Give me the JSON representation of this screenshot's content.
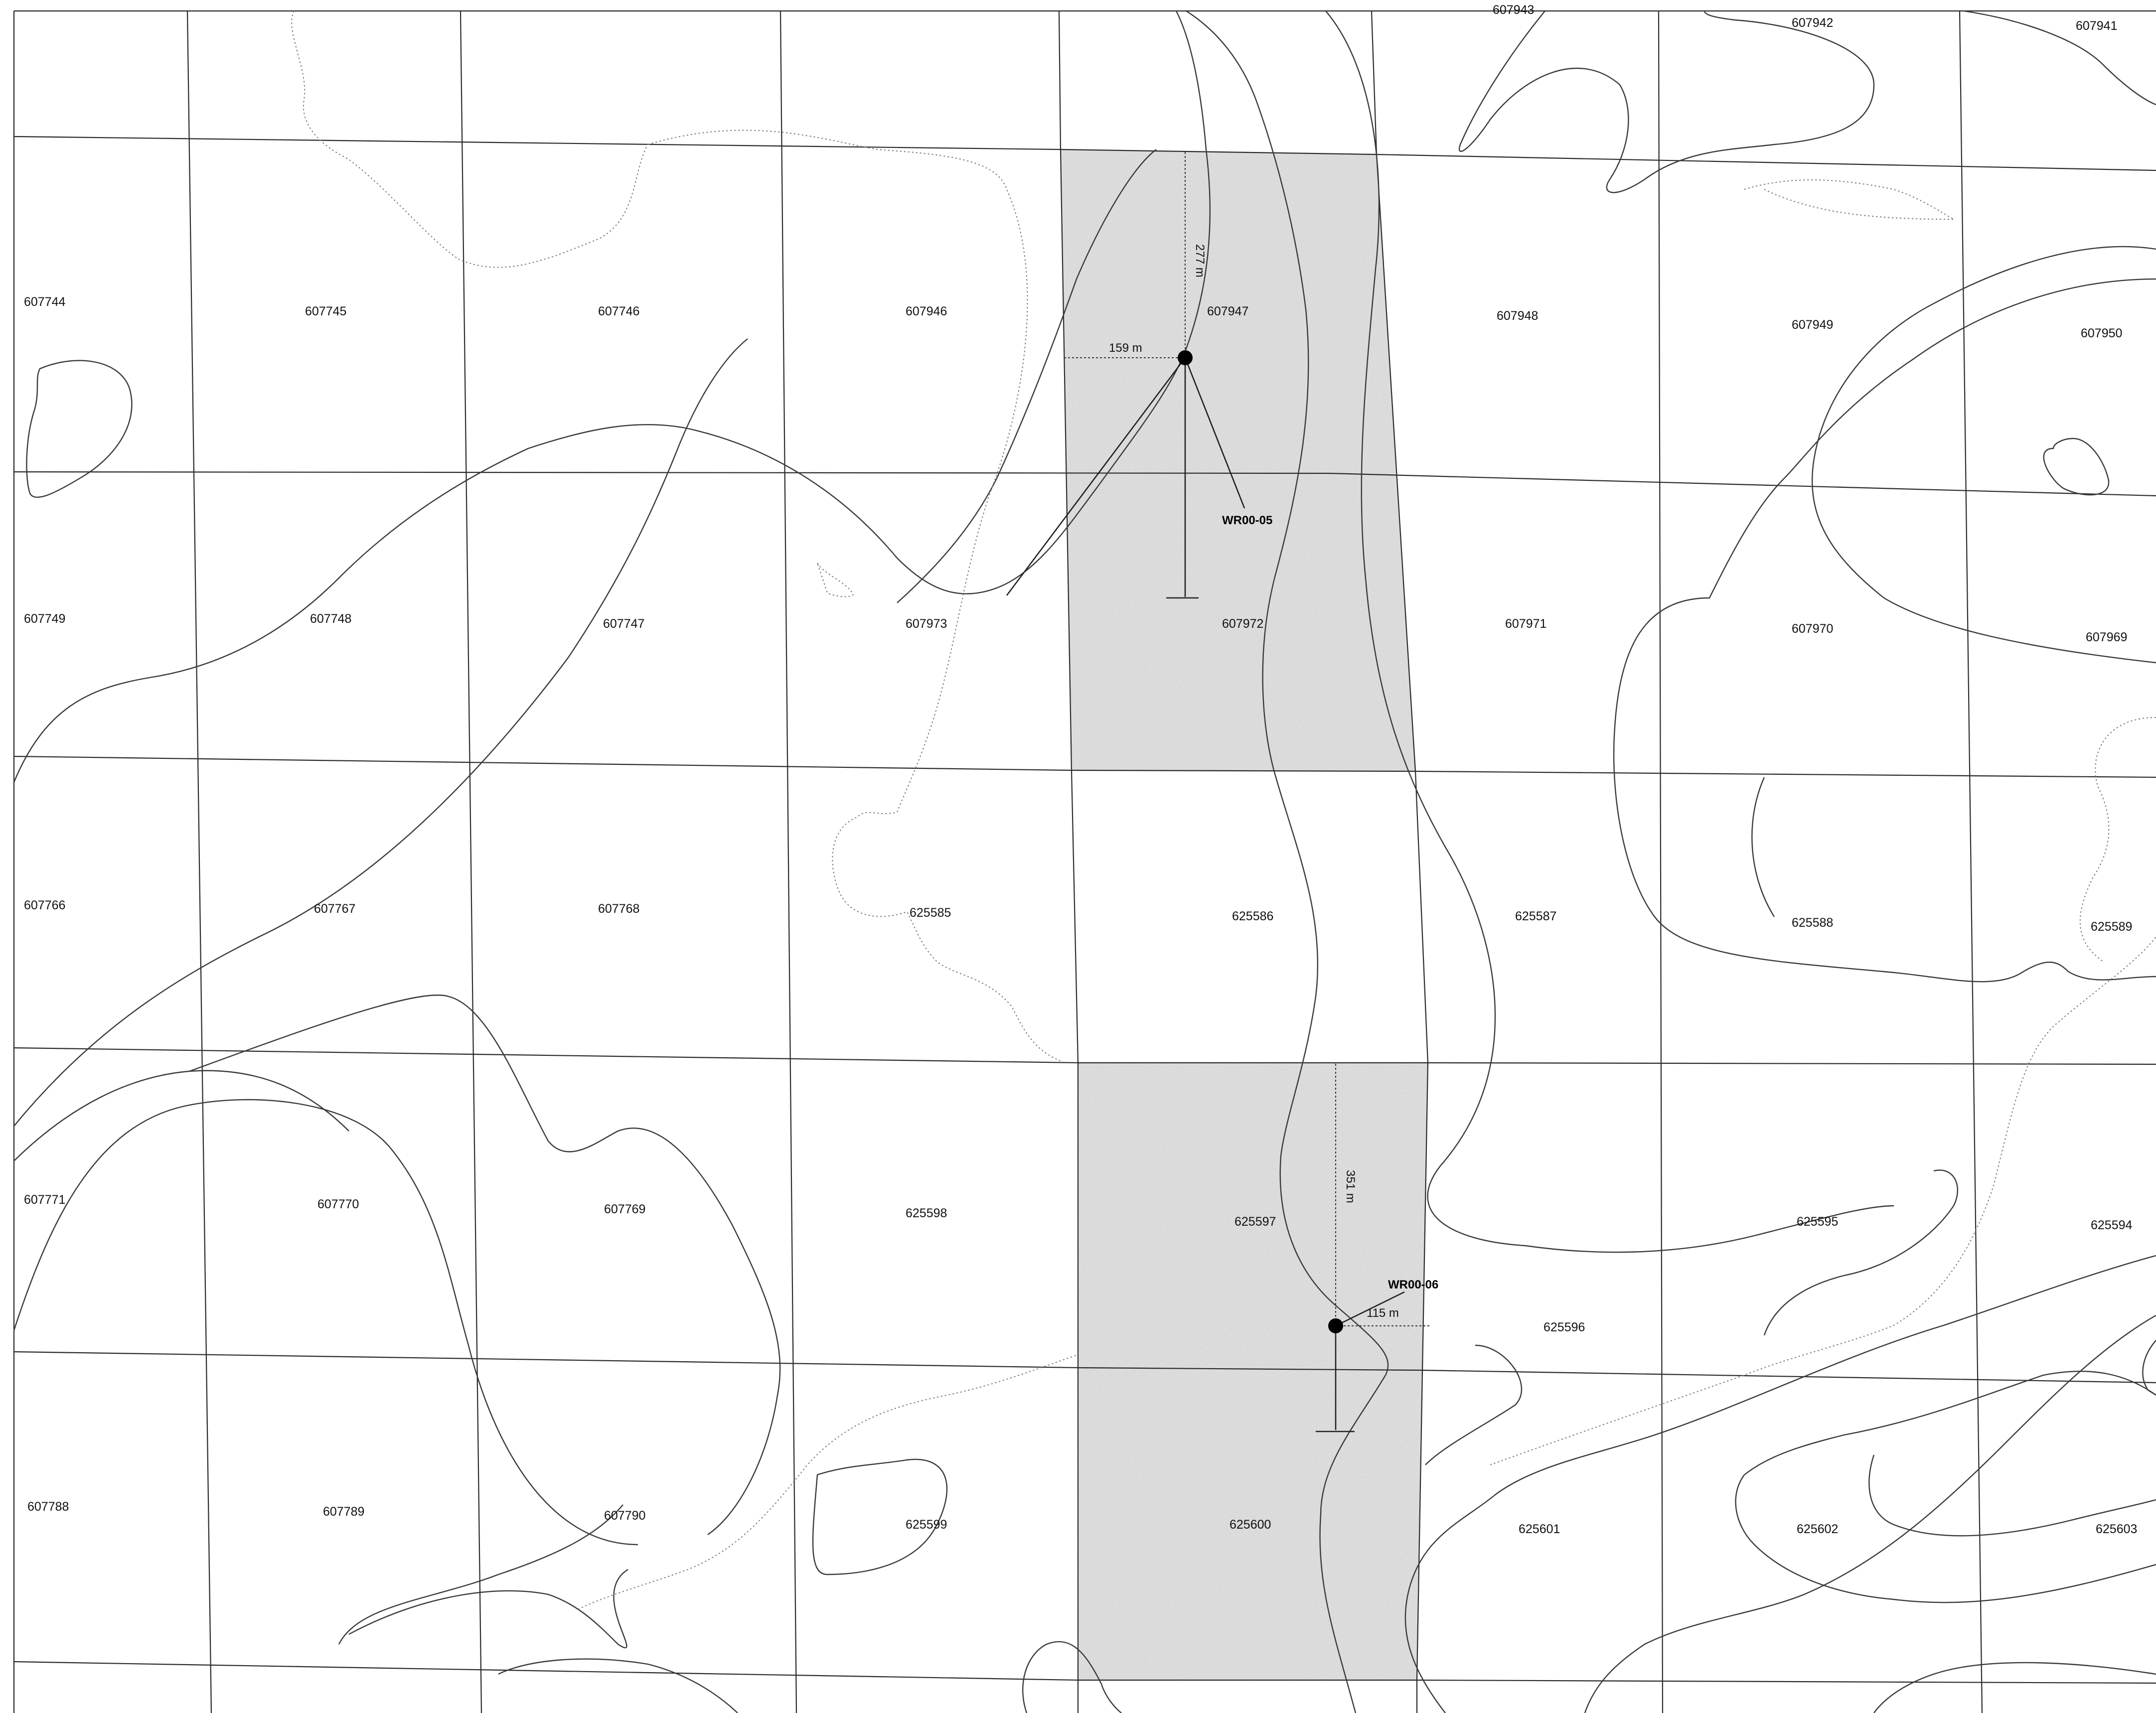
{
  "map": {
    "claims": [
      {
        "id": "607943",
        "row": 0,
        "col": 4
      },
      {
        "id": "607942",
        "row": 0,
        "col": 5
      },
      {
        "id": "607941",
        "row": 0,
        "col": 6
      },
      {
        "id": "607744",
        "row": 1,
        "col": 0
      },
      {
        "id": "607745",
        "row": 1,
        "col": 1
      },
      {
        "id": "607746",
        "row": 1,
        "col": 2
      },
      {
        "id": "607946",
        "row": 1,
        "col": 3
      },
      {
        "id": "607947",
        "row": 1,
        "col": 4
      },
      {
        "id": "607948",
        "row": 1,
        "col": 5
      },
      {
        "id": "607949",
        "row": 1,
        "col": 6
      },
      {
        "id": "607950",
        "row": 1,
        "col": 7
      },
      {
        "id": "607749",
        "row": 2,
        "col": 0
      },
      {
        "id": "607748",
        "row": 2,
        "col": 1
      },
      {
        "id": "607747",
        "row": 2,
        "col": 2
      },
      {
        "id": "607973",
        "row": 2,
        "col": 3
      },
      {
        "id": "607972",
        "row": 2,
        "col": 4
      },
      {
        "id": "607971",
        "row": 2,
        "col": 5
      },
      {
        "id": "607970",
        "row": 2,
        "col": 6
      },
      {
        "id": "607969",
        "row": 2,
        "col": 7
      },
      {
        "id": "607766",
        "row": 3,
        "col": 0
      },
      {
        "id": "607767",
        "row": 3,
        "col": 1
      },
      {
        "id": "607768",
        "row": 3,
        "col": 2
      },
      {
        "id": "625585",
        "row": 3,
        "col": 3
      },
      {
        "id": "625586",
        "row": 3,
        "col": 4
      },
      {
        "id": "625587",
        "row": 3,
        "col": 5
      },
      {
        "id": "625588",
        "row": 3,
        "col": 6
      },
      {
        "id": "625589",
        "row": 3,
        "col": 7
      },
      {
        "id": "607771",
        "row": 4,
        "col": 0
      },
      {
        "id": "607770",
        "row": 4,
        "col": 1
      },
      {
        "id": "607769",
        "row": 4,
        "col": 2
      },
      {
        "id": "625598",
        "row": 4,
        "col": 3
      },
      {
        "id": "625597",
        "row": 4,
        "col": 4
      },
      {
        "id": "625596",
        "row": 4,
        "col": 5
      },
      {
        "id": "625595",
        "row": 4,
        "col": 6
      },
      {
        "id": "625594",
        "row": 4,
        "col": 7
      },
      {
        "id": "607788",
        "row": 5,
        "col": 0
      },
      {
        "id": "607789",
        "row": 5,
        "col": 1
      },
      {
        "id": "607790",
        "row": 5,
        "col": 2
      },
      {
        "id": "625599",
        "row": 5,
        "col": 3
      },
      {
        "id": "625600",
        "row": 5,
        "col": 4
      },
      {
        "id": "625601",
        "row": 5,
        "col": 5
      },
      {
        "id": "625602",
        "row": 5,
        "col": 6
      },
      {
        "id": "625603",
        "row": 5,
        "col": 7
      }
    ],
    "drill_holes": [
      {
        "name": "WR00-05",
        "offset_east": "159 m",
        "offset_north": "277 m"
      },
      {
        "name": "WR00-06",
        "offset_east": "115 m",
        "offset_north": "351 m"
      }
    ],
    "colors": {
      "grid": "#2a2a2a",
      "contour": "#3a3a3a",
      "shaded_claims": "#c8c8c8",
      "drill_collar": "#000000"
    }
  }
}
